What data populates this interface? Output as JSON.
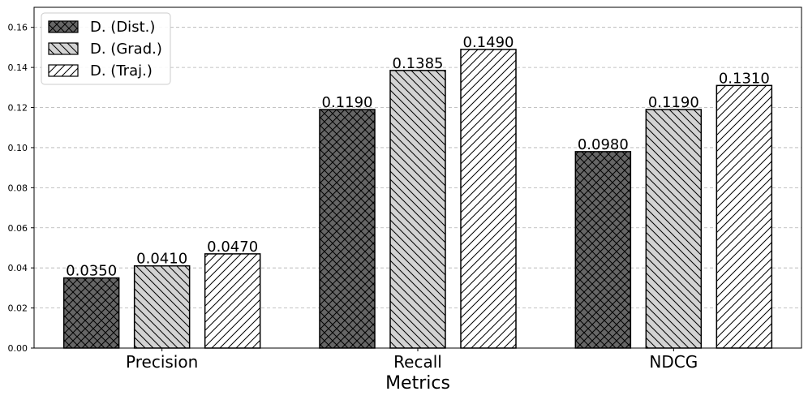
{
  "chart_data": {
    "type": "bar",
    "categories": [
      "Precision",
      "Recall",
      "NDCG"
    ],
    "xlabel": "Metrics",
    "ylabel": "",
    "ylim": [
      0,
      0.17
    ],
    "yticks": [
      "0.00",
      "0.02",
      "0.04",
      "0.06",
      "0.08",
      "0.10",
      "0.12",
      "0.14",
      "0.16"
    ],
    "grid": "horizontal dashed",
    "legend_position": "top-left",
    "series": [
      {
        "name": "D. (Dist.)",
        "values": [
          0.035,
          0.119,
          0.098
        ],
        "labels": [
          "0.0350",
          "0.1190",
          "0.0980"
        ],
        "color": "#666666",
        "hatch": "cross"
      },
      {
        "name": "D. (Grad.)",
        "values": [
          0.041,
          0.1385,
          0.119
        ],
        "labels": [
          "0.0410",
          "0.1385",
          "0.1190"
        ],
        "color": "#d3d3d3",
        "hatch": "backslash"
      },
      {
        "name": "D. (Traj.)",
        "values": [
          0.047,
          0.149,
          0.131
        ],
        "labels": [
          "0.0470",
          "0.1490",
          "0.1310"
        ],
        "color": "#ffffff",
        "hatch": "slash"
      }
    ]
  }
}
